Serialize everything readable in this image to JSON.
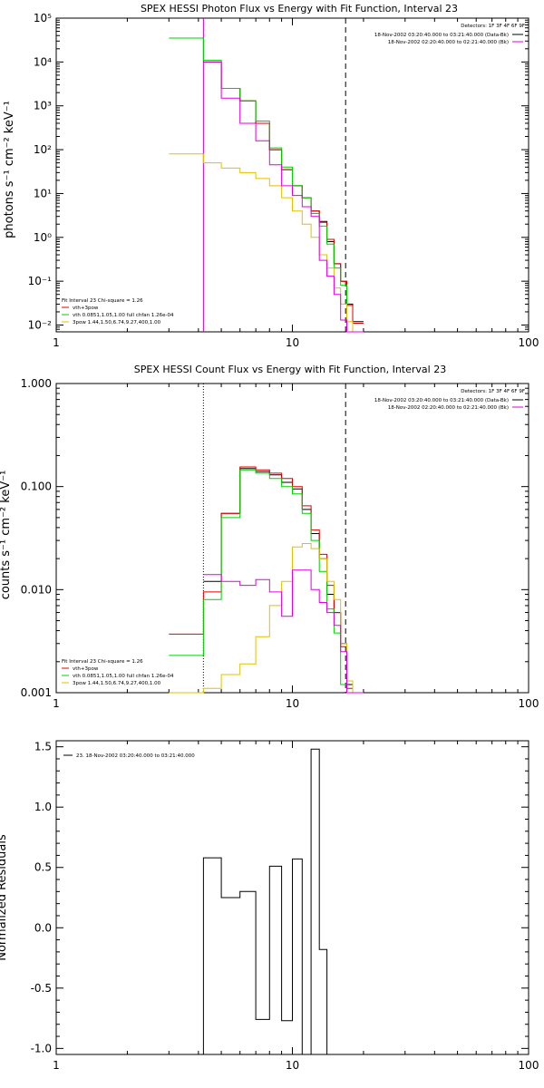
{
  "chart_data": [
    {
      "type": "line",
      "style": "step",
      "title": "SPEX HESSI Photon Flux vs Energy with Fit Function, Interval 23",
      "ylabel": "photons s⁻¹ cm⁻² keV⁻¹",
      "xlabel": "",
      "xscale": "log",
      "yscale": "log",
      "xlim": [
        1,
        100
      ],
      "ylim": [
        0.007,
        100000
      ],
      "xticks": [
        {
          "v": 1,
          "label": "1"
        },
        {
          "v": 10,
          "label": "10"
        },
        {
          "v": 100,
          "label": "100"
        }
      ],
      "yticks": [
        {
          "v": 0.01,
          "label": "10⁻²"
        },
        {
          "v": 0.1,
          "label": "10⁻¹"
        },
        {
          "v": 1,
          "label": "10⁰"
        },
        {
          "v": 10,
          "label": "10¹"
        },
        {
          "v": 100,
          "label": "10²"
        },
        {
          "v": 1000,
          "label": "10³"
        },
        {
          "v": 10000,
          "label": "10⁴"
        },
        {
          "v": 100000,
          "label": "10⁵"
        }
      ],
      "vlines": [
        {
          "x": 4.2,
          "style": "solid",
          "color": "#c000c0"
        },
        {
          "x": 16.8,
          "style": "dashed",
          "color": "#000000"
        }
      ],
      "legend_right": {
        "header": "Detectors: 1F 3F 4F 6F 9F",
        "items": [
          {
            "label": "18-Nov-2002 03:20:40.000 to 03:21:40.000 (Data-Bk)",
            "color": "#000000"
          },
          {
            "label": "18-Nov-2002 02:20:40.000 to 02:21:40.000 (Bk)",
            "color": "#e000e0"
          }
        ]
      },
      "fit_legend": {
        "header": "Fit Interval 23   Chi-square = 1.26",
        "items": [
          {
            "label": "vth+3pow",
            "color": "#e00000"
          },
          {
            "label": "vth 0.0851,1.05,1.00  full chfan 1.26e-04",
            "color": "#00d000"
          },
          {
            "label": "3pow 1.44,1.50,6.74,9.27,400,1.00",
            "color": "#e0c000"
          }
        ]
      },
      "edges": [
        3.0,
        4.2,
        5.0,
        6.0,
        7.0,
        8.0,
        9.0,
        10.0,
        11.0,
        12.0,
        13.0,
        14.0,
        15.0,
        16.0,
        17.0,
        18.0,
        20.0
      ],
      "series": [
        {
          "id": "data",
          "color": "#000000",
          "values": [
            null,
            10000,
            2500,
            1300,
            400,
            100,
            35,
            15,
            8,
            4,
            2.3,
            0.8,
            0.25,
            0.1,
            0.03,
            0.012
          ]
        },
        {
          "id": "vth3pow",
          "color": "#e00000",
          "values": [
            null,
            10000,
            2500,
            1300,
            400,
            100,
            35,
            15,
            8,
            4,
            2.2,
            0.9,
            0.25,
            0.1,
            0.028,
            0.011
          ]
        },
        {
          "id": "vth",
          "color": "#00d000",
          "values": [
            35000,
            11000,
            2500,
            1300,
            450,
            110,
            40,
            15,
            8,
            3.5,
            1.8,
            0.7,
            0.2,
            0.08,
            0.006,
            0.003
          ]
        },
        {
          "id": "3pow",
          "color": "#e0c000",
          "values": [
            80,
            50,
            38,
            30,
            22,
            15,
            8,
            4,
            2,
            1,
            0.4,
            0.2,
            0.07,
            0.03,
            0.012,
            0.007
          ]
        },
        {
          "id": "bk",
          "color": "#e000e0",
          "values": [
            null,
            10000,
            1500,
            400,
            160,
            45,
            15,
            9,
            5,
            3,
            0.3,
            0.13,
            0.05,
            0.013,
            0.006,
            0.005
          ]
        }
      ]
    },
    {
      "type": "line",
      "style": "step",
      "title": "SPEX HESSI Count Flux vs Energy with Fit Function, Interval 23",
      "ylabel": "counts s⁻¹ cm⁻² keV⁻¹",
      "xlabel": "",
      "xscale": "log",
      "yscale": "log",
      "xlim": [
        1,
        100
      ],
      "ylim": [
        0.001,
        1.0
      ],
      "xticks": [
        {
          "v": 1,
          "label": "1"
        },
        {
          "v": 10,
          "label": "10"
        },
        {
          "v": 100,
          "label": "100"
        }
      ],
      "yticks": [
        {
          "v": 0.001,
          "label": "0.001"
        },
        {
          "v": 0.01,
          "label": "0.010"
        },
        {
          "v": 0.1,
          "label": "0.100"
        },
        {
          "v": 1.0,
          "label": "1.000"
        }
      ],
      "vlines": [
        {
          "x": 4.2,
          "style": "dotted",
          "color": "#000000"
        },
        {
          "x": 16.8,
          "style": "dashed",
          "color": "#000000"
        }
      ],
      "legend_right": {
        "header": "Detectors: 1F 3F 4F 6F 9F",
        "items": [
          {
            "label": "18-Nov-2002 03:20:40.000 to 03:21:40.000 (Data-Bk)",
            "color": "#000000"
          },
          {
            "label": "18-Nov-2002 02:20:40.000 to 02:21:40.000 (Bk)",
            "color": "#e000e0"
          }
        ]
      },
      "fit_legend": {
        "header": "Fit Interval 23   Chi-square = 1.26",
        "items": [
          {
            "label": "vth+3pow",
            "color": "#e00000"
          },
          {
            "label": "vth 0.0851,1.05,1.00  full chfan 1.26e-04",
            "color": "#00d000"
          },
          {
            "label": "3pow 1.44,1.50,6.74,9.27,400,1.00",
            "color": "#e0c000"
          }
        ]
      },
      "edges": [
        3.0,
        4.2,
        5.0,
        6.0,
        7.0,
        8.0,
        9.0,
        10.0,
        11.0,
        12.0,
        13.0,
        14.0,
        15.0,
        16.0,
        17.0,
        18.0,
        19.0,
        20.0
      ],
      "series": [
        {
          "id": "data",
          "color": "#000000",
          "values": [
            null,
            0.012,
            0.055,
            0.15,
            0.14,
            0.13,
            0.11,
            0.095,
            0.06,
            0.035,
            0.02,
            0.009,
            0.006,
            0.003,
            0.0012,
            0.001,
            0.001
          ]
        },
        {
          "id": "vth3pow",
          "color": "#e00000",
          "values": [
            0.0037,
            0.0095,
            0.055,
            0.155,
            0.145,
            0.135,
            0.12,
            0.1,
            0.065,
            0.038,
            0.022,
            0.011,
            0.006,
            0.0028,
            0.0011,
            0.001,
            0.001
          ]
        },
        {
          "id": "vth",
          "color": "#00d000",
          "values": [
            0.0023,
            0.008,
            0.05,
            0.145,
            0.135,
            0.12,
            0.1,
            0.085,
            0.055,
            0.03,
            0.015,
            0.0065,
            0.0038,
            0.0012,
            0.0009,
            0.0009,
            0.0009
          ]
        },
        {
          "id": "3pow",
          "color": "#e0c000",
          "values": [
            0.001,
            0.0011,
            0.0015,
            0.0019,
            0.0035,
            0.007,
            0.012,
            0.026,
            0.028,
            0.025,
            0.02,
            0.012,
            0.008,
            0.003,
            0.0013,
            0.001,
            0.001
          ]
        },
        {
          "id": "bk",
          "color": "#e000e0",
          "values": [
            null,
            0.014,
            0.012,
            0.011,
            0.0125,
            0.0095,
            0.0055,
            0.0155,
            0.0155,
            0.01,
            0.0075,
            0.006,
            0.0045,
            0.0025,
            0.001,
            0.001,
            0.001
          ]
        }
      ]
    },
    {
      "type": "line",
      "style": "step",
      "title": "",
      "ylabel": "Normalized Residuals",
      "xlabel": "",
      "xscale": "log",
      "yscale": "linear",
      "xlim": [
        1,
        100
      ],
      "ylim": [
        -1.05,
        1.55
      ],
      "xticks": [
        {
          "v": 1,
          "label": "1"
        },
        {
          "v": 10,
          "label": "10"
        },
        {
          "v": 100,
          "label": "100"
        }
      ],
      "yticks": [
        {
          "v": -1.0,
          "label": "-1.0"
        },
        {
          "v": -0.5,
          "label": "-0.5"
        },
        {
          "v": 0.0,
          "label": "0.0"
        },
        {
          "v": 0.5,
          "label": "0.5"
        },
        {
          "v": 1.0,
          "label": "1.0"
        },
        {
          "v": 1.5,
          "label": "1.5"
        }
      ],
      "legend_left": {
        "items": [
          {
            "label": "23. 18-Nov-2002 03:20:40.000 to 03:21:40.000",
            "color": "#000000"
          }
        ]
      },
      "edges": [
        4.2,
        5.0,
        6.0,
        7.0,
        8.0,
        9.0,
        10.0,
        11.0,
        12.0,
        13.0,
        14.0,
        15.0,
        16.0
      ],
      "series": [
        {
          "id": "residuals",
          "color": "#000000",
          "values": [
            0.58,
            0.25,
            0.3,
            -0.76,
            0.51,
            -0.77,
            0.57,
            -1.05,
            1.48,
            -0.18,
            -1.05,
            -1.05
          ]
        }
      ]
    }
  ]
}
